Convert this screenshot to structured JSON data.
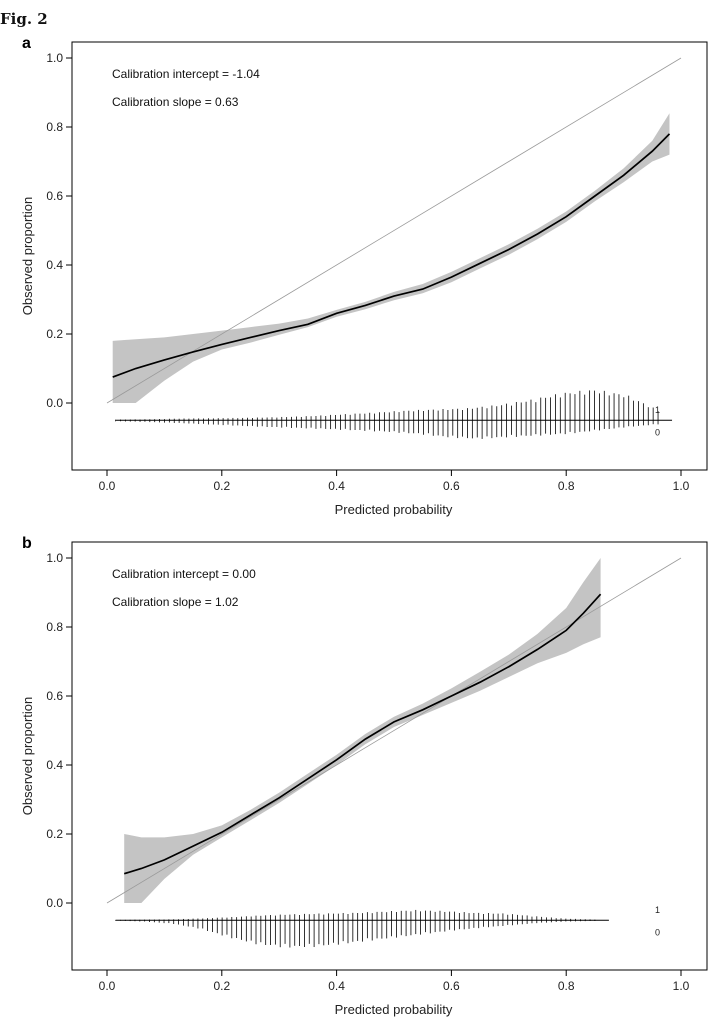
{
  "figure_label": "Fig. 2",
  "chart_data": [
    {
      "panel": "a",
      "type": "line",
      "xlabel": "Predicted probability",
      "ylabel": "Observed proportion",
      "xlim": [
        0.0,
        1.0
      ],
      "ylim": [
        -0.15,
        1.0
      ],
      "xticks": [
        "0.0",
        "0.2",
        "0.4",
        "0.6",
        "0.8",
        "1.0"
      ],
      "yticks": [
        "0.0",
        "0.2",
        "0.4",
        "0.6",
        "0.8",
        "1.0"
      ],
      "annotations": [
        "Calibration intercept = -1.04",
        "Calibration slope = 0.63"
      ],
      "rug_labels": [
        "1",
        "0"
      ],
      "reference_line": {
        "x": [
          0.0,
          1.0
        ],
        "y": [
          0.0,
          1.0
        ]
      },
      "series": [
        {
          "x": [
            0.01,
            0.05,
            0.1,
            0.15,
            0.2,
            0.25,
            0.3,
            0.35,
            0.4,
            0.45,
            0.5,
            0.55,
            0.6,
            0.65,
            0.7,
            0.75,
            0.8,
            0.85,
            0.9,
            0.95,
            0.98
          ],
          "y": [
            0.075,
            0.1,
            0.125,
            0.148,
            0.17,
            0.19,
            0.21,
            0.228,
            0.26,
            0.283,
            0.31,
            0.33,
            0.365,
            0.405,
            0.445,
            0.49,
            0.54,
            0.6,
            0.66,
            0.73,
            0.78
          ],
          "lower": [
            0.0,
            0.0,
            0.065,
            0.12,
            0.155,
            0.175,
            0.198,
            0.22,
            0.25,
            0.272,
            0.298,
            0.318,
            0.35,
            0.39,
            0.43,
            0.475,
            0.525,
            0.585,
            0.64,
            0.7,
            0.72
          ],
          "upper": [
            0.18,
            0.185,
            0.19,
            0.2,
            0.21,
            0.22,
            0.23,
            0.245,
            0.27,
            0.293,
            0.322,
            0.345,
            0.38,
            0.42,
            0.46,
            0.505,
            0.555,
            0.615,
            0.68,
            0.76,
            0.84
          ]
        }
      ],
      "rug": {
        "x_range": [
          0.015,
          0.96
        ],
        "n": 112,
        "up": [
          0.002,
          0.003,
          0.005,
          0.006,
          0.007,
          0.009,
          0.012,
          0.017,
          0.022,
          0.028,
          0.032,
          0.035,
          0.045,
          0.06,
          0.08,
          0.09,
          0.075,
          0.03
        ],
        "down": [
          0.003,
          0.005,
          0.008,
          0.012,
          0.016,
          0.02,
          0.023,
          0.026,
          0.03,
          0.034,
          0.04,
          0.05,
          0.055,
          0.05,
          0.045,
          0.04,
          0.03,
          0.02,
          0.012
        ]
      }
    },
    {
      "panel": "b",
      "type": "line",
      "xlabel": "Predicted probability",
      "ylabel": "Observed proportion",
      "xlim": [
        0.0,
        1.0
      ],
      "ylim": [
        -0.15,
        1.0
      ],
      "xticks": [
        "0.0",
        "0.2",
        "0.4",
        "0.6",
        "0.8",
        "1.0"
      ],
      "yticks": [
        "0.0",
        "0.2",
        "0.4",
        "0.6",
        "0.8",
        "1.0"
      ],
      "annotations": [
        "Calibration intercept = 0.00",
        "Calibration slope = 1.02"
      ],
      "rug_labels": [
        "1",
        "0"
      ],
      "reference_line": {
        "x": [
          0.0,
          1.0
        ],
        "y": [
          0.0,
          1.0
        ]
      },
      "series": [
        {
          "x": [
            0.03,
            0.06,
            0.1,
            0.15,
            0.2,
            0.25,
            0.3,
            0.35,
            0.4,
            0.45,
            0.5,
            0.55,
            0.6,
            0.65,
            0.7,
            0.75,
            0.8,
            0.83,
            0.86
          ],
          "y": [
            0.085,
            0.1,
            0.125,
            0.165,
            0.205,
            0.255,
            0.305,
            0.36,
            0.415,
            0.475,
            0.525,
            0.56,
            0.6,
            0.64,
            0.685,
            0.735,
            0.79,
            0.84,
            0.895
          ],
          "lower": [
            0.0,
            0.0,
            0.07,
            0.14,
            0.19,
            0.24,
            0.29,
            0.345,
            0.4,
            0.46,
            0.51,
            0.545,
            0.58,
            0.615,
            0.655,
            0.695,
            0.725,
            0.75,
            0.77
          ],
          "upper": [
            0.2,
            0.19,
            0.19,
            0.2,
            0.225,
            0.27,
            0.32,
            0.375,
            0.43,
            0.49,
            0.54,
            0.578,
            0.622,
            0.67,
            0.72,
            0.78,
            0.855,
            0.93,
            1.0
          ]
        }
      ],
      "rug": {
        "x_range": [
          0.015,
          0.85
        ],
        "n": 100,
        "up": [
          0.001,
          0.002,
          0.003,
          0.006,
          0.01,
          0.015,
          0.018,
          0.02,
          0.022,
          0.026,
          0.03,
          0.027,
          0.022,
          0.02,
          0.012,
          0.005,
          0.002
        ],
        "down": [
          0.001,
          0.004,
          0.01,
          0.025,
          0.05,
          0.07,
          0.08,
          0.078,
          0.07,
          0.06,
          0.05,
          0.04,
          0.03,
          0.022,
          0.015,
          0.008,
          0.004,
          0.002
        ]
      }
    }
  ]
}
